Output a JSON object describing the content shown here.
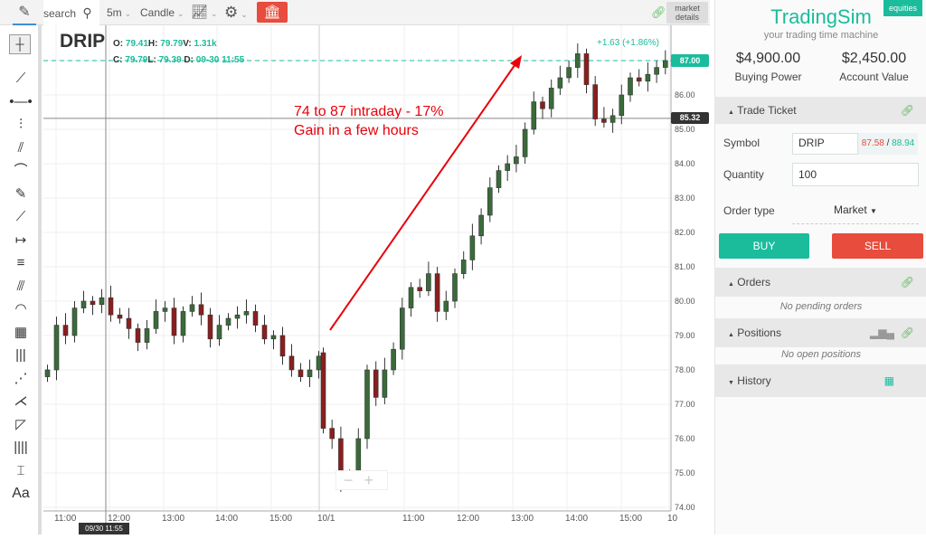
{
  "toolbar": {
    "search_placeholder": "search",
    "interval": "5m",
    "chart_type": "Candle",
    "market_details": "market details"
  },
  "left_tools": [
    {
      "name": "crosshair-icon",
      "glyph": "┼"
    },
    {
      "name": "trend-line-icon",
      "glyph": "⟋"
    },
    {
      "name": "horizontal-ray-icon",
      "glyph": "•—•"
    },
    {
      "name": "vertical-segment-icon",
      "glyph": "⫶"
    },
    {
      "name": "parallel-channel-icon",
      "glyph": "⫽"
    },
    {
      "name": "curve-icon",
      "glyph": "⌒"
    },
    {
      "name": "brush-icon",
      "glyph": "✎"
    },
    {
      "name": "ray-icon",
      "glyph": "⟋"
    },
    {
      "name": "measure-arrow-icon",
      "glyph": "↦"
    },
    {
      "name": "horizontal-lines-icon",
      "glyph": "≡"
    },
    {
      "name": "pitchfork-icon",
      "glyph": "⫻"
    },
    {
      "name": "fib-arc-icon",
      "glyph": "◠"
    },
    {
      "name": "gann-box-icon",
      "glyph": "▦"
    },
    {
      "name": "vertical-lines-icon",
      "glyph": "|||"
    },
    {
      "name": "elliott-wave-icon",
      "glyph": "⋰"
    },
    {
      "name": "fan-icon",
      "glyph": "⋌"
    },
    {
      "name": "triangle-icon",
      "glyph": "◸"
    },
    {
      "name": "period-lines-icon",
      "glyph": "||||"
    },
    {
      "name": "range-icon",
      "glyph": "⌶"
    },
    {
      "name": "text-icon",
      "glyph": "Aa"
    }
  ],
  "chart": {
    "symbol": "DRIP",
    "ohlc": {
      "o_label": "O:",
      "o": "79.41",
      "h_label": "H:",
      "h": "79.79",
      "v_label": "V:",
      "v": "1.31k",
      "c_label": "C:",
      "c": "79.79",
      "l_label": "L:",
      "l": "79.39",
      "d_label": "D:",
      "d": "09-30 11:55"
    },
    "change": "+1.63 (+1.86%)",
    "last_price": "87.00",
    "crosshair_price": "85.32",
    "crosshair_time": "09/30 11:55",
    "annotation": "74 to 87 intraday - 17% Gain in a few hours",
    "annotation_color": "#e8000b",
    "up_color": "#3a6b3a",
    "down_color": "#8b1e1e",
    "accent": "#1abc9c"
  },
  "chart_data": {
    "type": "candlestick",
    "ylim": [
      73.8,
      87.6
    ],
    "y_ticks": [
      "87.00",
      "86.00",
      "85.00",
      "84.00",
      "83.00",
      "82.00",
      "81.00",
      "80.00",
      "79.00",
      "78.00",
      "77.00",
      "76.00",
      "75.00",
      "74.00"
    ],
    "x_ticks": [
      "11:00",
      "12:00",
      "13:00",
      "14:00",
      "15:00",
      "10/1",
      "11:00",
      "12:00",
      "13:00",
      "14:00",
      "15:00",
      "10"
    ],
    "day1_closes": [
      78.0,
      79.3,
      79.0,
      79.8,
      80.0,
      79.9,
      80.1,
      79.6,
      79.5,
      79.2,
      78.8,
      79.2,
      79.7,
      79.8,
      79.0,
      79.7,
      79.9,
      79.6,
      78.9,
      79.3,
      79.5,
      79.6,
      79.7,
      79.3,
      78.9,
      79.0,
      78.4,
      78.0,
      77.8,
      78.0,
      78.4
    ],
    "day2_closes": [
      76.3,
      76.0,
      74.7,
      74.9,
      76.0,
      78.0,
      77.2,
      78.0,
      78.6,
      79.8,
      80.4,
      80.3,
      80.8,
      79.7,
      80.0,
      80.8,
      81.2,
      81.9,
      82.5,
      83.3,
      83.8,
      84.0,
      84.2,
      85.0,
      85.8,
      85.6,
      86.2,
      86.5,
      86.8,
      87.2,
      86.3,
      85.3,
      85.2,
      85.4,
      86.0,
      86.5,
      86.4,
      86.6,
      86.8,
      87.0
    ]
  },
  "panel": {
    "brand": "TradingSim",
    "tagline": "your trading time machine",
    "badge": "equities",
    "buying_power": "$4,900.00",
    "buying_power_label": "Buying Power",
    "account_value": "$2,450.00",
    "account_value_label": "Account Value",
    "trade_ticket": "Trade Ticket",
    "symbol_label": "Symbol",
    "symbol": "DRIP",
    "bid": "87.58",
    "sep": "/",
    "ask": "88.94",
    "quantity_label": "Quantity",
    "quantity": "100",
    "order_type_label": "Order type",
    "order_type": "Market",
    "buy": "BUY",
    "sell": "SELL",
    "orders": "Orders",
    "no_orders": "No pending orders",
    "positions": "Positions",
    "no_positions": "No open positions",
    "history": "History"
  }
}
